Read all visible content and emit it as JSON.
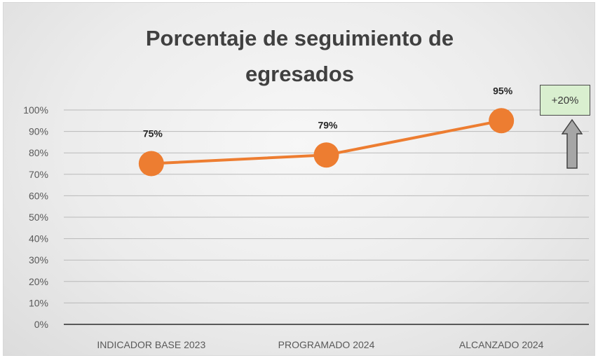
{
  "chart_data": {
    "type": "line",
    "title": "Porcentaje de seguimiento de egresados",
    "title_lines": [
      "Porcentaje de seguimiento de",
      "egresados"
    ],
    "categories": [
      "INDICADOR BASE 2023",
      "PROGRAMADO 2024",
      "ALCANZADO 2024"
    ],
    "series": [
      {
        "values": [
          75,
          79,
          95
        ],
        "labels": [
          "75%",
          "79%",
          "95%"
        ],
        "color": "#ed7d31"
      }
    ],
    "y_ticks": [
      "0%",
      "10%",
      "20%",
      "30%",
      "40%",
      "50%",
      "60%",
      "70%",
      "80%",
      "90%",
      "100%"
    ],
    "ylim": [
      0,
      100
    ],
    "grid": true,
    "legend": "none",
    "annotation": {
      "text": "+20%",
      "box_color": "#d9efcf",
      "arrow_color": "#a6a6a6",
      "arrow_icon": "up-arrow-icon"
    }
  }
}
